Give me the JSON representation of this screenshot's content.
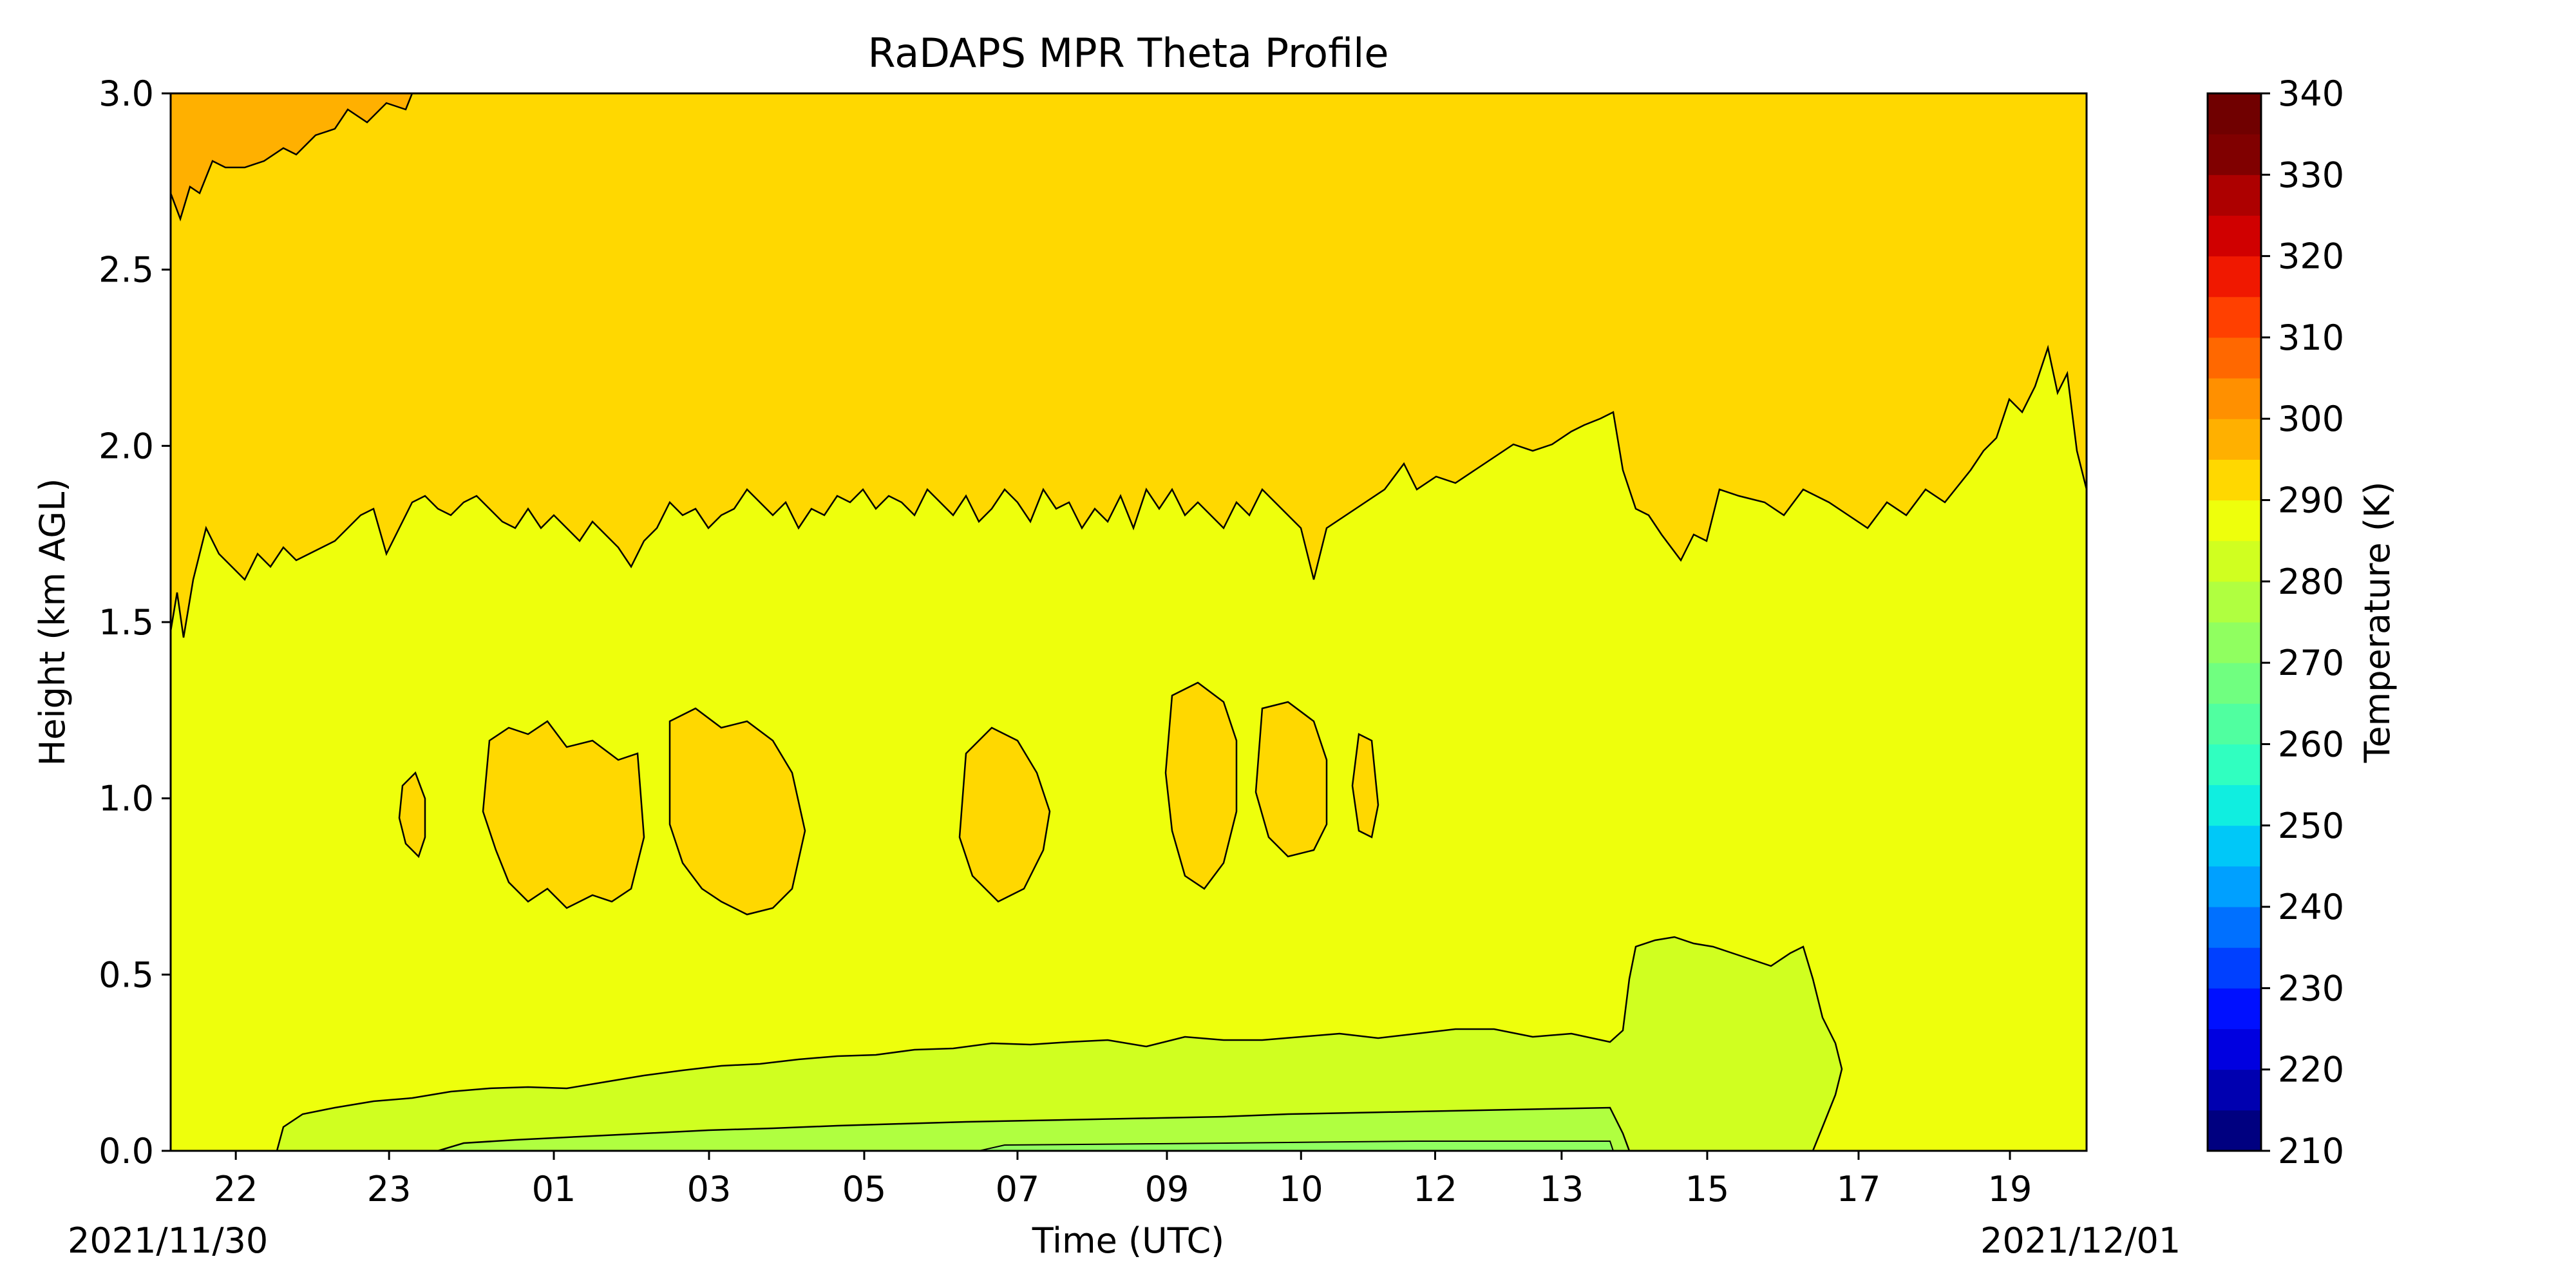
{
  "chart_data": {
    "type": "heatmap",
    "subtype": "filled-contour",
    "title": "RaDAPS MPR Theta Profile",
    "xlabel": "Time (UTC)",
    "ylabel": "Height (km AGL)",
    "ylim": [
      0,
      3.0
    ],
    "y_ticks": [
      "0.0",
      "0.5",
      "1.0",
      "1.5",
      "2.0",
      "2.5",
      "3.0"
    ],
    "x_ticks": [
      {
        "label": "22",
        "frac": 0.034
      },
      {
        "label": "23",
        "frac": 0.114
      },
      {
        "label": "01",
        "frac": 0.2
      },
      {
        "label": "03",
        "frac": 0.281
      },
      {
        "label": "05",
        "frac": 0.362
      },
      {
        "label": "07",
        "frac": 0.442
      },
      {
        "label": "09",
        "frac": 0.52
      },
      {
        "label": "10",
        "frac": 0.59
      },
      {
        "label": "12",
        "frac": 0.66
      },
      {
        "label": "13",
        "frac": 0.726
      },
      {
        "label": "15",
        "frac": 0.802
      },
      {
        "label": "17",
        "frac": 0.881
      },
      {
        "label": "19",
        "frac": 0.96
      }
    ],
    "date_start": "2021/11/30",
    "date_end": "2021/12/01",
    "colorbar": {
      "label": "Temperature (K)",
      "min": 210,
      "max": 340,
      "step": 5,
      "ticks": [
        210,
        220,
        230,
        240,
        250,
        260,
        270,
        280,
        290,
        300,
        310,
        320,
        330,
        340
      ],
      "colors": [
        "#000080",
        "#0000b0",
        "#0000e0",
        "#0010ff",
        "#0040ff",
        "#0070ff",
        "#00a0ff",
        "#00c8f8",
        "#10eee0",
        "#30ffc0",
        "#50ffa0",
        "#70ff80",
        "#90ff60",
        "#b0ff40",
        "#d0ff20",
        "#eeff0c",
        "#ffd800",
        "#ffb000",
        "#ff9000",
        "#ff6800",
        "#ff4000",
        "#f01800",
        "#d00000",
        "#ad0000",
        "#800000",
        "#700000"
      ]
    },
    "regions": [
      {
        "band": "295-300",
        "color": "#ffd800",
        "y_range": [
          1.6,
          3.0
        ]
      },
      {
        "band": "300-305",
        "color": "#ffb000",
        "y_range": [
          2.75,
          3.0
        ]
      },
      {
        "band": "290-295",
        "color": "#eeff0c",
        "y_range": [
          0.3,
          1.8
        ]
      },
      {
        "band": "285-290",
        "color": "#d0ff20",
        "y_range": [
          0,
          0.6
        ]
      },
      {
        "band": "280-285",
        "color": "#b0ff40",
        "y_range": [
          0,
          0.12
        ]
      }
    ]
  }
}
